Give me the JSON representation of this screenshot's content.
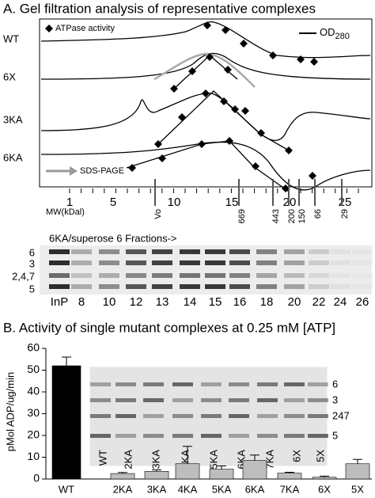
{
  "panel_a": {
    "title": "A. Gel filtration analysis of representative complexes",
    "legend_atpase": "ATPase activity",
    "legend_od": {
      "label": "OD",
      "subscript": "280"
    },
    "rows": [
      "WT",
      "6X",
      "3KA",
      "6KA"
    ],
    "sds_label": "SDS-PAGE",
    "fraction_numbers": [
      "1",
      "5",
      "10",
      "15",
      "20",
      "25"
    ],
    "mw_label": "MW(kDal)",
    "markers": [
      "Vo",
      "669",
      "443",
      "200",
      "150",
      "66",
      "29"
    ]
  },
  "gel_a": {
    "title": "6KA/superose 6 Fractions->",
    "side_labels": [
      "6",
      "3",
      "2,4,7",
      "5"
    ],
    "lanes": [
      "InP",
      "8",
      "10",
      "12",
      "13",
      "14",
      "15",
      "16",
      "18",
      "20",
      "22",
      "24",
      "26"
    ]
  },
  "gel_b": {
    "side_labels": [
      "6",
      "3",
      "247",
      "5"
    ],
    "lanes": [
      "WT",
      "2KA",
      "3KA",
      "4KA",
      "5KA",
      "6KA",
      "7KA",
      "6X",
      "5X"
    ]
  },
  "chart_data": {
    "type": "bar",
    "title": "B. Activity of single mutant complexes at 0.25 mM [ATP]",
    "y_label": "pMol ADP/ug/min",
    "categories": [
      "WT",
      "2KA",
      "3KA",
      "4KA",
      "5KA",
      "6KA",
      "7KA",
      "6X",
      "5X"
    ],
    "values": [
      52,
      2.5,
      3.5,
      7,
      4.5,
      8.5,
      2.7,
      0.8,
      7
    ],
    "errors": [
      4,
      0.5,
      0.7,
      8,
      1.5,
      2.5,
      0.4,
      0.5,
      2
    ],
    "colors": [
      "#000000",
      "#bdbdbd",
      "#bdbdbd",
      "#bdbdbd",
      "#bdbdbd",
      "#bdbdbd",
      "#bdbdbd",
      "#bdbdbd",
      "#bdbdbd"
    ],
    "ylim": [
      0,
      60
    ],
    "yticks": [
      0,
      10,
      20,
      30,
      40,
      50,
      60
    ]
  }
}
